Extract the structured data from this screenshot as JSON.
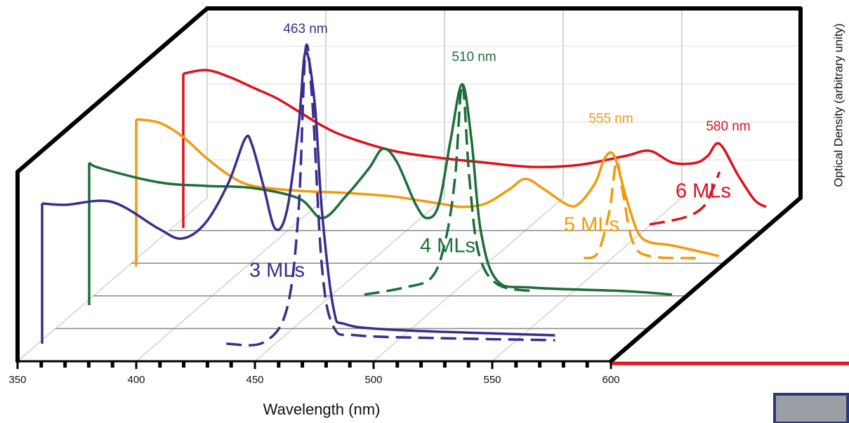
{
  "chart_data": {
    "type": "line",
    "x_label": "Wavelength (nm)",
    "y_label": "Optical Density (arbitrary unity)",
    "xlim": [
      350,
      600
    ],
    "xticks": [
      350,
      400,
      450,
      500,
      550,
      600
    ],
    "ylim": [
      0,
      110
    ],
    "grid": true,
    "series": [
      {
        "name": "3 MLs",
        "color": "#3a2d8c",
        "peak_label": "463 nm",
        "x": [
          350,
          360,
          380,
          400,
          410,
          420,
          430,
          437,
          440,
          445,
          450,
          455,
          460,
          463,
          467,
          470,
          475,
          480,
          500,
          550,
          570
        ],
        "values": [
          50,
          49.5,
          50.5,
          41,
          37.5,
          43,
          57.5,
          73,
          71,
          56,
          41,
          47.5,
          77.5,
          104,
          85,
          47.5,
          12.5,
          7,
          5,
          3.5,
          3
        ],
        "emission_x": [
          429,
          445,
          455,
          460,
          463,
          466,
          470,
          475,
          485,
          520,
          570
        ],
        "emission_values": [
          0,
          0.5,
          12.5,
          47.5,
          105,
          85,
          27.5,
          6,
          3,
          2,
          1.25
        ]
      },
      {
        "name": "4 MLs",
        "color": "#1e6e3a",
        "peak_label": "510 nm",
        "x": [
          350,
          355,
          380,
          400,
          420,
          440,
          450,
          460,
          470,
          476,
          482,
          490,
          495,
          500,
          505,
          510,
          514,
          518,
          525,
          540,
          580,
          600
        ],
        "values": [
          50.75,
          48.75,
          43.75,
          42.5,
          41.75,
          38,
          31,
          38.75,
          48.75,
          55.75,
          51,
          36,
          31,
          36,
          58.75,
          78.75,
          58.75,
          26.25,
          8.75,
          6.25,
          5,
          3.75
        ],
        "emission_x": [
          468,
          485,
          497,
          503,
          507,
          510,
          513,
          517,
          525,
          540
        ],
        "emission_values": [
          3.75,
          6.25,
          10,
          23.75,
          46,
          79,
          46,
          18.75,
          7.5,
          5
        ]
      },
      {
        "name": "5 MLs",
        "color": "#f29a0e",
        "peak_label": "555 nm",
        "x": [
          350,
          360,
          370,
          380,
          390,
          400,
          420,
          440,
          460,
          470,
          480,
          490,
          500,
          510,
          517,
          525,
          535,
          540,
          547,
          551,
          555,
          560,
          565,
          570,
          580,
          600
        ],
        "values": [
          52.5,
          51.25,
          46.25,
          38.75,
          32.5,
          28.75,
          27,
          26.25,
          25,
          23.75,
          22.5,
          21.25,
          22.5,
          27.5,
          31.25,
          27.5,
          22,
          22.5,
          30,
          38.75,
          39.5,
          25,
          12.5,
          8.75,
          7.5,
          3.75
        ],
        "emission_x": [
          542,
          548,
          553,
          556,
          559,
          563,
          570,
          590
        ],
        "emission_values": [
          3,
          5,
          20,
          37.5,
          25,
          8.75,
          3.75,
          3
        ]
      },
      {
        "name": "6 MLs",
        "color": "#e0101e",
        "peak_label": "580 nm",
        "x": [
          350,
          360,
          370,
          380,
          390,
          400,
          410,
          420,
          440,
          460,
          480,
          500,
          520,
          540,
          550,
          560,
          570,
          575,
          580,
          588,
          595,
          600
        ],
        "values": [
          55,
          56.25,
          53.75,
          50,
          46.25,
          41.25,
          36.25,
          32.5,
          27.5,
          25,
          23.25,
          21.75,
          22.5,
          25.75,
          27.5,
          23.25,
          23.25,
          25.75,
          30,
          18.75,
          10,
          7.5
        ],
        "emission_x": [
          550,
          565,
          573,
          577,
          580
        ],
        "emission_values": [
          1.25,
          3.75,
          7.5,
          13.75,
          20
        ]
      }
    ]
  }
}
